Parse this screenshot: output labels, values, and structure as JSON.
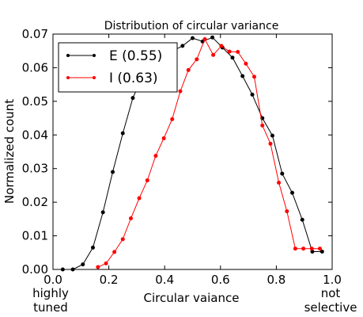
{
  "chart_data": {
    "type": "line",
    "title": "Distribution of circular variance",
    "xlabel": "Circular vaiance",
    "ylabel": "Normalized count",
    "xlim": [
      0.0,
      1.0
    ],
    "ylim": [
      0.0,
      0.07
    ],
    "x_ticks": [
      "0.0",
      "0.2",
      "0.4",
      "0.6",
      "0.8",
      "1.0"
    ],
    "y_ticks": [
      "0.00",
      "0.01",
      "0.02",
      "0.03",
      "0.04",
      "0.05",
      "0.06",
      "0.07"
    ],
    "grid": false,
    "legend_position": "top-left",
    "annotations": {
      "left_lines": [
        "highly",
        "tuned"
      ],
      "right_lines": [
        "not",
        "selective"
      ]
    },
    "series": [
      {
        "name": "E (0.55)",
        "color": "#000000",
        "x": [
          0.035,
          0.071,
          0.107,
          0.143,
          0.179,
          0.214,
          0.25,
          0.286,
          0.321,
          0.357,
          0.393,
          0.429,
          0.464,
          0.5,
          0.536,
          0.571,
          0.607,
          0.643,
          0.679,
          0.714,
          0.75,
          0.786,
          0.821,
          0.857,
          0.893,
          0.929,
          0.964
        ],
        "y": [
          0.0,
          0.0,
          0.0015,
          0.0065,
          0.017,
          0.029,
          0.0405,
          0.051,
          0.0575,
          0.0605,
          0.0635,
          0.065,
          0.0665,
          0.0688,
          0.0678,
          0.069,
          0.066,
          0.063,
          0.0575,
          0.052,
          0.045,
          0.0398,
          0.0285,
          0.0228,
          0.0148,
          0.0053,
          0.0053
        ]
      },
      {
        "name": "I (0.63)",
        "color": "#ff0000",
        "x": [
          0.161,
          0.19,
          0.22,
          0.25,
          0.279,
          0.309,
          0.338,
          0.368,
          0.397,
          0.427,
          0.456,
          0.485,
          0.515,
          0.544,
          0.574,
          0.603,
          0.632,
          0.662,
          0.691,
          0.721,
          0.75,
          0.779,
          0.809,
          0.838,
          0.868,
          0.897,
          0.927,
          0.956
        ],
        "y": [
          0.0007,
          0.0018,
          0.0052,
          0.009,
          0.0152,
          0.0212,
          0.0265,
          0.0338,
          0.039,
          0.0447,
          0.053,
          0.0593,
          0.0625,
          0.0685,
          0.0638,
          0.0665,
          0.0648,
          0.0647,
          0.0612,
          0.0573,
          0.0428,
          0.0374,
          0.0258,
          0.0173,
          0.0062,
          0.0062,
          0.0062,
          0.0062
        ]
      }
    ]
  }
}
